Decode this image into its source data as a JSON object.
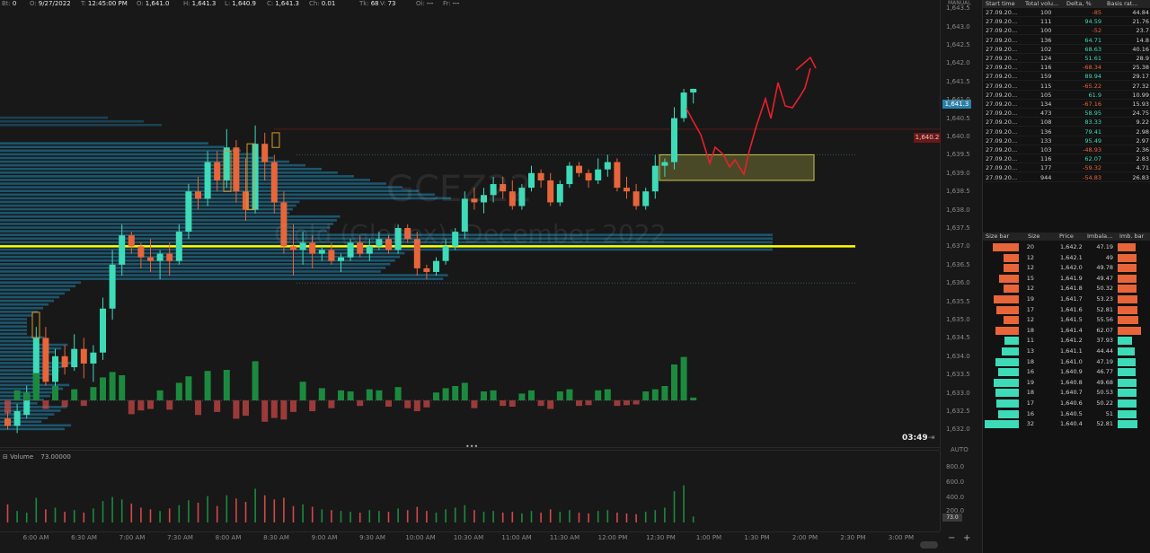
{
  "colors": {
    "up": "#3ddbb8",
    "down": "#e8653a",
    "volume_up": "#1c8a3e",
    "volume_down": "#d44848",
    "profile": "#1e6a8a",
    "poc": "#ffff00",
    "zone": "#c8c850",
    "arrow": "#e8202a",
    "neg": "#e8653a",
    "pos": "#3ddbb8"
  },
  "infobar": {
    "items": [
      {
        "label": "Bt:",
        "value": "0"
      },
      {
        "label": "O:",
        "value": "9/27/2022"
      },
      {
        "label": "T:",
        "value": "12:45:00 PM"
      },
      {
        "label": "O:",
        "value": "1,641.0"
      },
      {
        "label": "H:",
        "value": "1,641.3"
      },
      {
        "label": "L:",
        "value": "1,640.9"
      },
      {
        "label": "C:",
        "value": "1,641.3"
      },
      {
        "label": "Ch:",
        "value": "0.01"
      },
      {
        "label": "Tk:",
        "value": "68"
      },
      {
        "label": "V:",
        "value": "73"
      },
      {
        "label": "Oi:",
        "value": "---"
      },
      {
        "label": "Fr:",
        "value": "---"
      }
    ]
  },
  "watermark": {
    "symbol": "GCEZ22",
    "name": "Gold (Globex): December 2022"
  },
  "price_axis": {
    "mode": "MANUAL",
    "ticks": [
      "1,643.5",
      "1,643.0",
      "1,642.5",
      "1,642.0",
      "1,641.5",
      "1,641.0",
      "1,640.5",
      "1,640.0",
      "1,639.5",
      "1,639.0",
      "1,638.5",
      "1,638.0",
      "1,637.5",
      "1,637.0",
      "1,636.5",
      "1,636.0",
      "1,635.5",
      "1,635.0",
      "1,634.5",
      "1,634.0",
      "1,633.5",
      "1,633.0",
      "1,632.5",
      "1,632.0"
    ],
    "current": "1,641.3",
    "level": "1,640.2"
  },
  "countdown": "03:49",
  "auto_label": "AUTO",
  "volume_panel": {
    "title": "Volume",
    "value": "73.00000",
    "ticks": [
      "800.0",
      "600.0",
      "400.0",
      "200.0"
    ],
    "current": "73.0"
  },
  "time_axis": [
    "6:00 AM",
    "6:30 AM",
    "7:00 AM",
    "7:30 AM",
    "8:00 AM",
    "8:30 AM",
    "9:00 AM",
    "9:30 AM",
    "10:00 AM",
    "10:30 AM",
    "11:00 AM",
    "11:30 AM",
    "12:00 PM",
    "12:30 PM",
    "1:00 PM",
    "1:30 PM",
    "2:00 PM",
    "2:30 PM",
    "3:00 PM"
  ],
  "chart_data": {
    "type": "candlestick",
    "interval": "5 min",
    "ylim": [
      1631.8,
      1643.6
    ],
    "candles": [
      [
        1632.3,
        1632.5,
        1632.0,
        1632.1
      ],
      [
        1632.1,
        1632.7,
        1631.9,
        1632.5
      ],
      [
        1632.4,
        1633.2,
        1632.3,
        1633.0
      ],
      [
        1633.0,
        1634.8,
        1632.8,
        1634.5
      ],
      [
        1634.5,
        1634.8,
        1633.2,
        1633.3
      ],
      [
        1633.3,
        1634.2,
        1632.8,
        1634.0
      ],
      [
        1634.0,
        1634.3,
        1633.5,
        1633.7
      ],
      [
        1633.7,
        1634.6,
        1633.6,
        1634.2
      ],
      [
        1634.2,
        1634.5,
        1633.4,
        1633.8
      ],
      [
        1633.8,
        1634.3,
        1633.3,
        1634.1
      ],
      [
        1634.1,
        1635.6,
        1633.9,
        1635.3
      ],
      [
        1635.3,
        1636.9,
        1635.0,
        1636.5
      ],
      [
        1636.5,
        1637.6,
        1636.2,
        1637.3
      ],
      [
        1637.3,
        1637.4,
        1636.8,
        1637.0
      ],
      [
        1637.0,
        1637.1,
        1636.4,
        1636.7
      ],
      [
        1636.7,
        1637.2,
        1636.3,
        1636.6
      ],
      [
        1636.6,
        1636.9,
        1636.1,
        1636.8
      ],
      [
        1636.8,
        1637.1,
        1636.2,
        1636.6
      ],
      [
        1636.6,
        1637.6,
        1636.5,
        1637.4
      ],
      [
        1637.4,
        1638.7,
        1637.2,
        1638.5
      ],
      [
        1638.5,
        1638.9,
        1638.0,
        1638.3
      ],
      [
        1638.3,
        1639.6,
        1638.1,
        1639.3
      ],
      [
        1639.3,
        1639.6,
        1638.5,
        1638.8
      ],
      [
        1638.8,
        1640.2,
        1638.6,
        1639.7
      ],
      [
        1639.7,
        1639.9,
        1638.2,
        1638.5
      ],
      [
        1638.5,
        1639.4,
        1637.7,
        1638.0
      ],
      [
        1638.0,
        1640.3,
        1637.9,
        1639.8
      ],
      [
        1639.8,
        1640.1,
        1638.8,
        1639.3
      ],
      [
        1639.3,
        1639.5,
        1637.9,
        1638.2
      ],
      [
        1638.2,
        1638.5,
        1636.8,
        1637.0
      ],
      [
        1637.0,
        1637.6,
        1636.2,
        1636.9
      ],
      [
        1636.9,
        1637.4,
        1636.5,
        1637.1
      ],
      [
        1637.1,
        1637.3,
        1636.4,
        1636.8
      ],
      [
        1636.8,
        1637.0,
        1636.6,
        1636.9
      ],
      [
        1636.9,
        1637.1,
        1636.5,
        1636.6
      ],
      [
        1636.6,
        1636.8,
        1636.3,
        1636.7
      ],
      [
        1636.7,
        1637.2,
        1636.6,
        1637.1
      ],
      [
        1637.1,
        1637.3,
        1636.7,
        1636.8
      ],
      [
        1636.8,
        1637.2,
        1636.6,
        1637.0
      ],
      [
        1637.0,
        1637.4,
        1636.9,
        1637.2
      ],
      [
        1637.2,
        1637.3,
        1636.8,
        1636.9
      ],
      [
        1636.9,
        1637.6,
        1636.8,
        1637.5
      ],
      [
        1637.5,
        1637.6,
        1637.1,
        1637.2
      ],
      [
        1637.2,
        1637.4,
        1636.2,
        1636.4
      ],
      [
        1636.4,
        1636.5,
        1636.1,
        1636.3
      ],
      [
        1636.3,
        1636.7,
        1636.2,
        1636.6
      ],
      [
        1636.6,
        1637.2,
        1636.5,
        1637.0
      ],
      [
        1637.0,
        1637.5,
        1636.9,
        1637.4
      ],
      [
        1637.4,
        1638.5,
        1637.2,
        1638.3
      ],
      [
        1638.3,
        1638.6,
        1638.0,
        1638.2
      ],
      [
        1638.2,
        1638.6,
        1637.9,
        1638.4
      ],
      [
        1638.4,
        1638.9,
        1638.2,
        1638.7
      ],
      [
        1638.7,
        1638.9,
        1638.3,
        1638.5
      ],
      [
        1638.5,
        1638.8,
        1638.0,
        1638.1
      ],
      [
        1638.1,
        1638.7,
        1638.0,
        1638.6
      ],
      [
        1638.6,
        1639.2,
        1638.5,
        1639.0
      ],
      [
        1639.0,
        1639.1,
        1638.6,
        1638.8
      ],
      [
        1638.8,
        1639.0,
        1638.1,
        1638.2
      ],
      [
        1638.2,
        1638.8,
        1638.1,
        1638.7
      ],
      [
        1638.7,
        1639.3,
        1638.6,
        1639.2
      ],
      [
        1639.2,
        1639.3,
        1638.9,
        1639.0
      ],
      [
        1639.0,
        1639.1,
        1638.6,
        1638.8
      ],
      [
        1638.8,
        1639.4,
        1638.7,
        1639.1
      ],
      [
        1639.1,
        1639.5,
        1638.9,
        1639.3
      ],
      [
        1639.3,
        1639.4,
        1638.5,
        1638.6
      ],
      [
        1638.6,
        1638.9,
        1638.3,
        1638.5
      ],
      [
        1638.5,
        1638.7,
        1638.0,
        1638.1
      ],
      [
        1638.1,
        1638.6,
        1638.0,
        1638.5
      ],
      [
        1638.5,
        1639.5,
        1638.3,
        1639.2
      ],
      [
        1639.2,
        1639.4,
        1638.9,
        1639.3
      ],
      [
        1639.3,
        1640.8,
        1639.1,
        1640.5
      ],
      [
        1640.5,
        1641.3,
        1640.4,
        1641.2
      ],
      [
        1641.2,
        1641.3,
        1640.9,
        1641.3
      ]
    ],
    "volume": [
      220,
      140,
      120,
      300,
      160,
      180,
      130,
      150,
      120,
      170,
      260,
      310,
      280,
      230,
      180,
      160,
      140,
      170,
      210,
      270,
      240,
      320,
      200,
      330,
      290,
      250,
      410,
      330,
      280,
      300,
      200,
      220,
      190,
      160,
      150,
      140,
      130,
      120,
      150,
      140,
      130,
      170,
      150,
      190,
      140,
      120,
      160,
      180,
      210,
      150,
      130,
      140,
      120,
      130,
      110,
      140,
      120,
      160,
      130,
      150,
      120,
      110,
      140,
      150,
      120,
      110,
      100,
      130,
      150,
      180,
      380,
      450,
      73
    ],
    "level_lines": [
      {
        "price": 1637.0,
        "style": "point-of-control"
      },
      {
        "price": 1640.2,
        "style": "resistance"
      }
    ],
    "zone": {
      "from": 1638.8,
      "to": 1639.5
    }
  },
  "time_and_sales": {
    "headers": [
      "Start time",
      "Total volu...",
      "Delta, %",
      "Basis rat..."
    ],
    "rows": [
      [
        "27.09.20...",
        "100",
        "-85",
        "44.84"
      ],
      [
        "27.09.20...",
        "111",
        "94.59",
        "21.76"
      ],
      [
        "27.09.20...",
        "100",
        "-52",
        "23.7"
      ],
      [
        "27.09.20...",
        "136",
        "64.71",
        "14.8"
      ],
      [
        "27.09.20...",
        "102",
        "68.63",
        "40.16"
      ],
      [
        "27.09.20...",
        "124",
        "51.61",
        "28.9"
      ],
      [
        "27.09.20...",
        "116",
        "-68.34",
        "25.38"
      ],
      [
        "27.09.20...",
        "159",
        "89.94",
        "29.17"
      ],
      [
        "27.09.20...",
        "115",
        "-65.22",
        "27.32"
      ],
      [
        "27.09.20...",
        "105",
        "61.9",
        "10.99"
      ],
      [
        "27.09.20...",
        "134",
        "-67.16",
        "15.93"
      ],
      [
        "27.09.20...",
        "473",
        "58.95",
        "24.75"
      ],
      [
        "27.09.20...",
        "108",
        "83.33",
        "9.22"
      ],
      [
        "27.09.20...",
        "136",
        "79.41",
        "2.98"
      ],
      [
        "27.09.20...",
        "133",
        "95.49",
        "2.97"
      ],
      [
        "27.09.20...",
        "103",
        "-48.93",
        "2.36"
      ],
      [
        "27.09.20...",
        "116",
        "62.07",
        "2.83"
      ],
      [
        "27.09.20...",
        "177",
        "-59.32",
        "4.71"
      ],
      [
        "27.09.20...",
        "944",
        "-54.83",
        "26.83"
      ]
    ]
  },
  "imbalance_ladder": {
    "headers": [
      "Size bar",
      "Size",
      "Price",
      "Imbala...",
      "Imb. bar"
    ],
    "rows": [
      [
        "20",
        "1,642.2",
        "47.19"
      ],
      [
        "12",
        "1,642.1",
        "49"
      ],
      [
        "12",
        "1,642.0",
        "49.78"
      ],
      [
        "15",
        "1,641.9",
        "49.47"
      ],
      [
        "12",
        "1,641.8",
        "50.32"
      ],
      [
        "19",
        "1,641.7",
        "53.23"
      ],
      [
        "17",
        "1,641.6",
        "52.81"
      ],
      [
        "12",
        "1,641.5",
        "55.56"
      ],
      [
        "18",
        "1,641.4",
        "62.07"
      ],
      [
        "11",
        "1,641.2",
        "37.93"
      ],
      [
        "13",
        "1,641.1",
        "44.44"
      ],
      [
        "18",
        "1,641.0",
        "47.19"
      ],
      [
        "16",
        "1,640.9",
        "46.77"
      ],
      [
        "19",
        "1,640.8",
        "49.68"
      ],
      [
        "18",
        "1,640.7",
        "50.53"
      ],
      [
        "17",
        "1,640.6",
        "50.22"
      ],
      [
        "16",
        "1,640.5",
        "51"
      ],
      [
        "32",
        "1,640.4",
        "52.81"
      ]
    ]
  }
}
